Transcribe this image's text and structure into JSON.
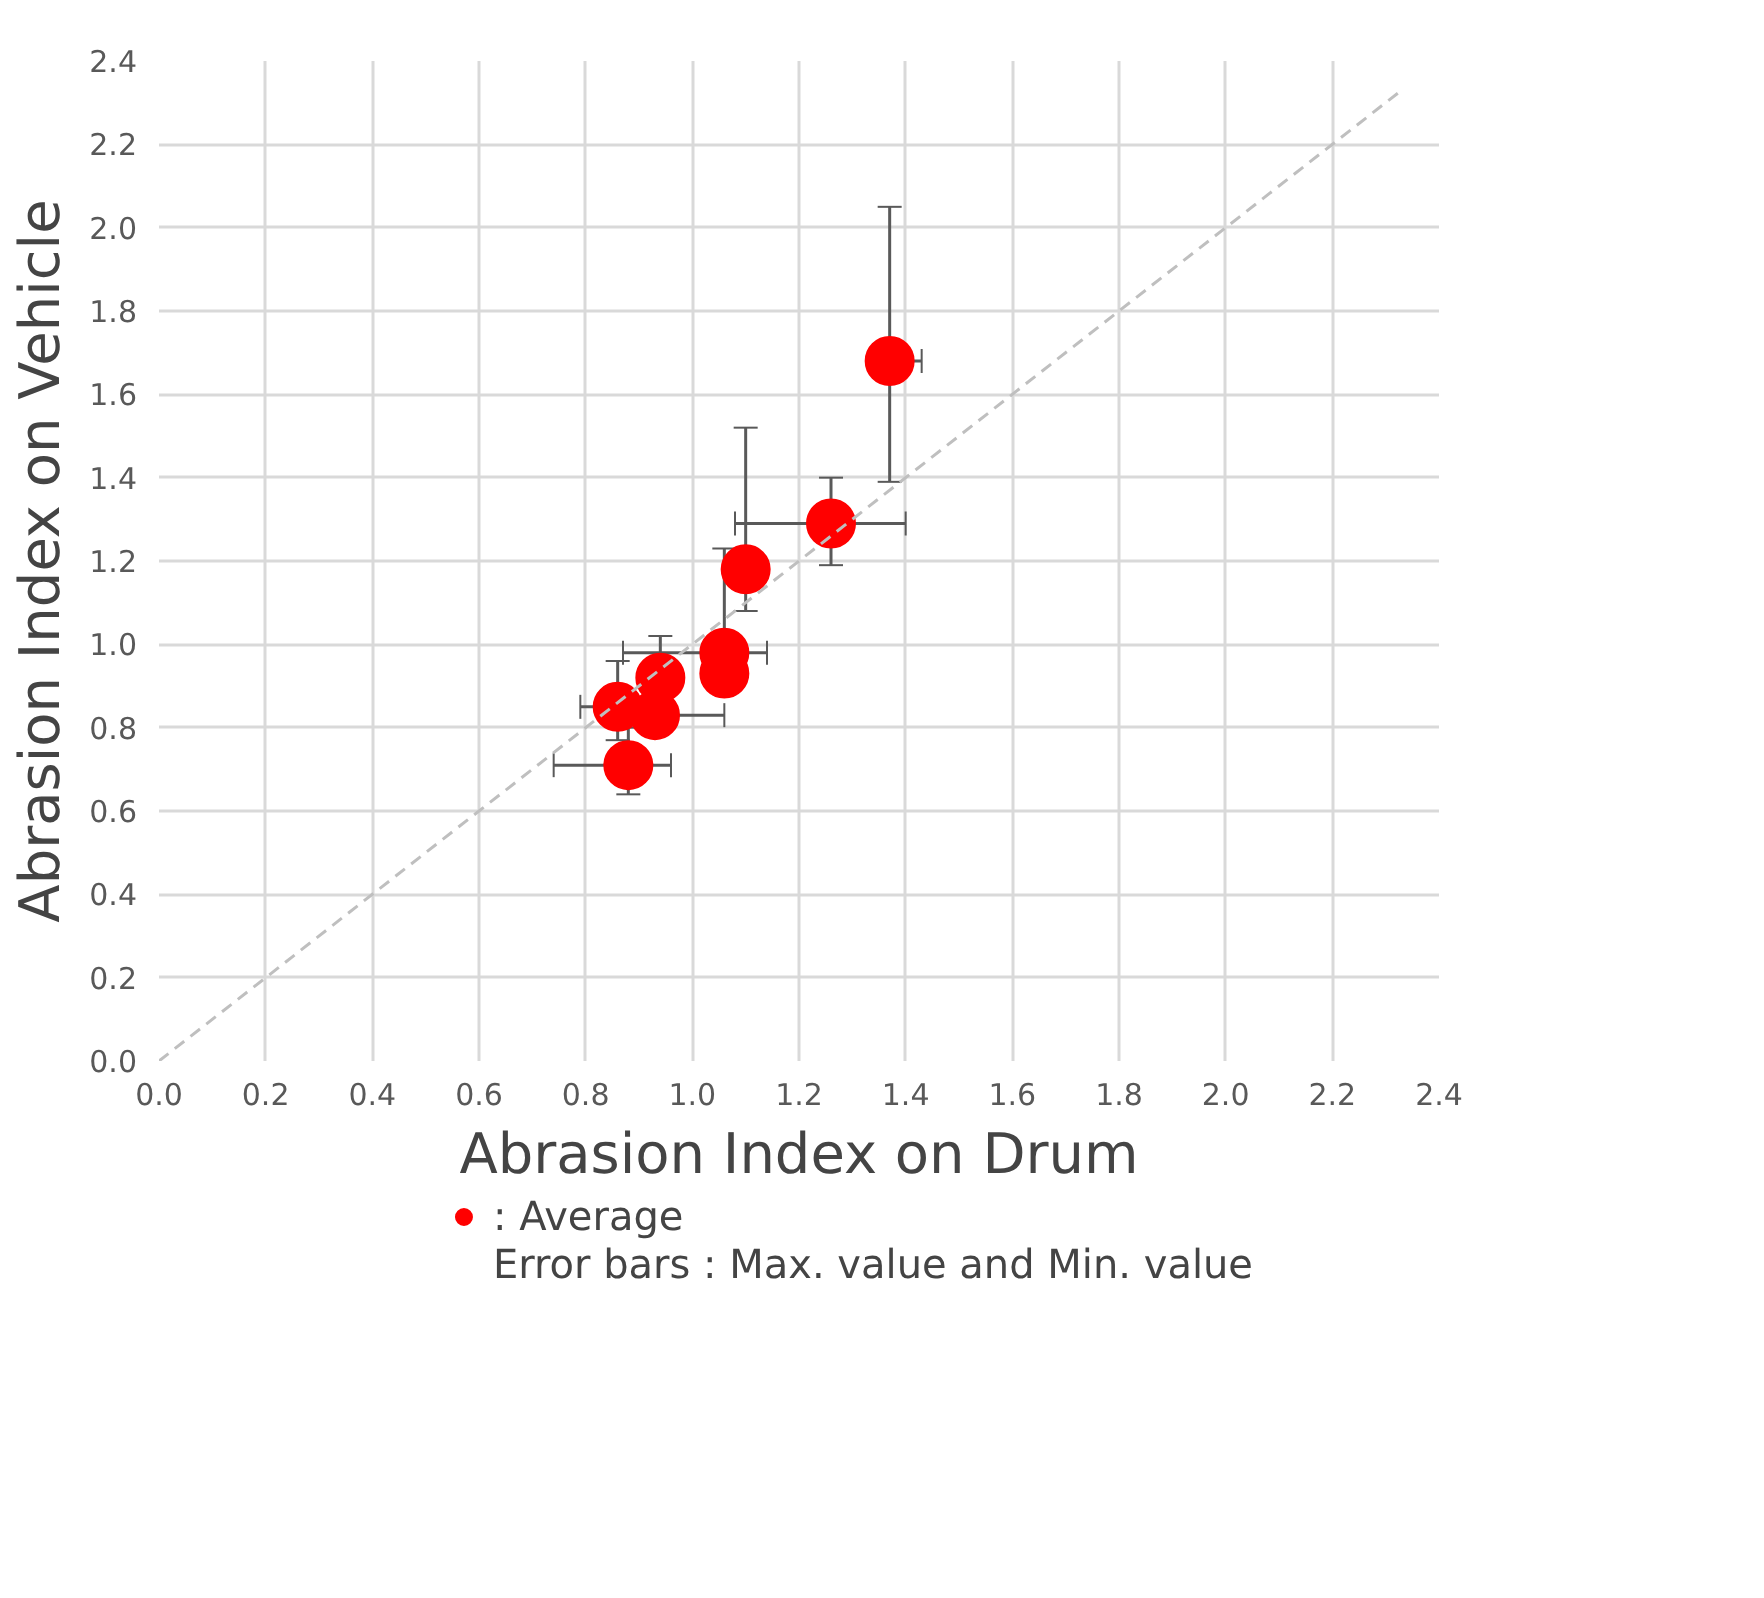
{
  "chart_data": {
    "type": "scatter",
    "xlabel": "Abrasion Index on Drum",
    "ylabel": "Abrasion Index on Vehicle",
    "xlim": [
      0,
      2.4
    ],
    "ylim": [
      0,
      2.4
    ],
    "xticks": [
      {
        "value": 0,
        "label": "0.0"
      },
      {
        "value": 0.2,
        "label": "0.2"
      },
      {
        "value": 0.4,
        "label": "0.4"
      },
      {
        "value": 0.6,
        "label": "0.6"
      },
      {
        "value": 0.8,
        "label": "0.8"
      },
      {
        "value": 1.0,
        "label": "1.0"
      },
      {
        "value": 1.2,
        "label": "1.2"
      },
      {
        "value": 1.4,
        "label": "1.4"
      },
      {
        "value": 1.6,
        "label": "1.6"
      },
      {
        "value": 1.8,
        "label": "1.8"
      },
      {
        "value": 2.0,
        "label": "2.0"
      },
      {
        "value": 2.2,
        "label": "2.2"
      },
      {
        "value": 2.4,
        "label": "2.4"
      }
    ],
    "yticks": [
      {
        "value": 0,
        "label": "0.0"
      },
      {
        "value": 0.2,
        "label": "0.2"
      },
      {
        "value": 0.4,
        "label": "0.4"
      },
      {
        "value": 0.6,
        "label": "0.6"
      },
      {
        "value": 0.8,
        "label": "0.8"
      },
      {
        "value": 1.0,
        "label": "1.0"
      },
      {
        "value": 1.2,
        "label": "1.2"
      },
      {
        "value": 1.4,
        "label": "1.4"
      },
      {
        "value": 1.6,
        "label": "1.6"
      },
      {
        "value": 1.8,
        "label": "1.8"
      },
      {
        "value": 2.0,
        "label": "2.0"
      },
      {
        "value": 2.2,
        "label": "2.2"
      },
      {
        "value": 2.4,
        "label": "2.4"
      }
    ],
    "grid": true,
    "legend": "bottom",
    "marker": "circle",
    "series": [
      {
        "name": ": Average",
        "color": "#ff0000",
        "x": [
          1.37,
          1.26,
          1.1,
          1.06,
          1.06,
          0.94,
          0.86,
          0.93,
          0.88
        ],
        "values": [
          1.68,
          1.29,
          1.18,
          0.98,
          0.93,
          0.92,
          0.85,
          0.83,
          0.71
        ],
        "errors": [
          [
            1.39,
            2.05
          ],
          [
            1.19,
            1.4
          ],
          [
            1.08,
            1.52
          ],
          [
            0.88,
            1.23
          ],
          null,
          [
            0.92,
            1.02
          ],
          [
            0.77,
            0.96
          ],
          null,
          [
            0.64,
            0.8
          ]
        ],
        "xerrors": [
          [
            1.37,
            1.43
          ],
          [
            1.08,
            1.4
          ],
          null,
          [
            0.87,
            1.14
          ],
          null,
          null,
          [
            0.79,
            0.86
          ],
          [
            0.93,
            1.06
          ],
          [
            0.74,
            0.96
          ]
        ]
      },
      {
        "type": "line",
        "color": "#bfbfbf",
        "line_style": "dashed",
        "marker": "none",
        "x": [
          0,
          2.33
        ],
        "values": [
          0,
          2.33
        ]
      }
    ],
    "annotations": [
      "Error bars : Max. value and Min. value"
    ]
  }
}
